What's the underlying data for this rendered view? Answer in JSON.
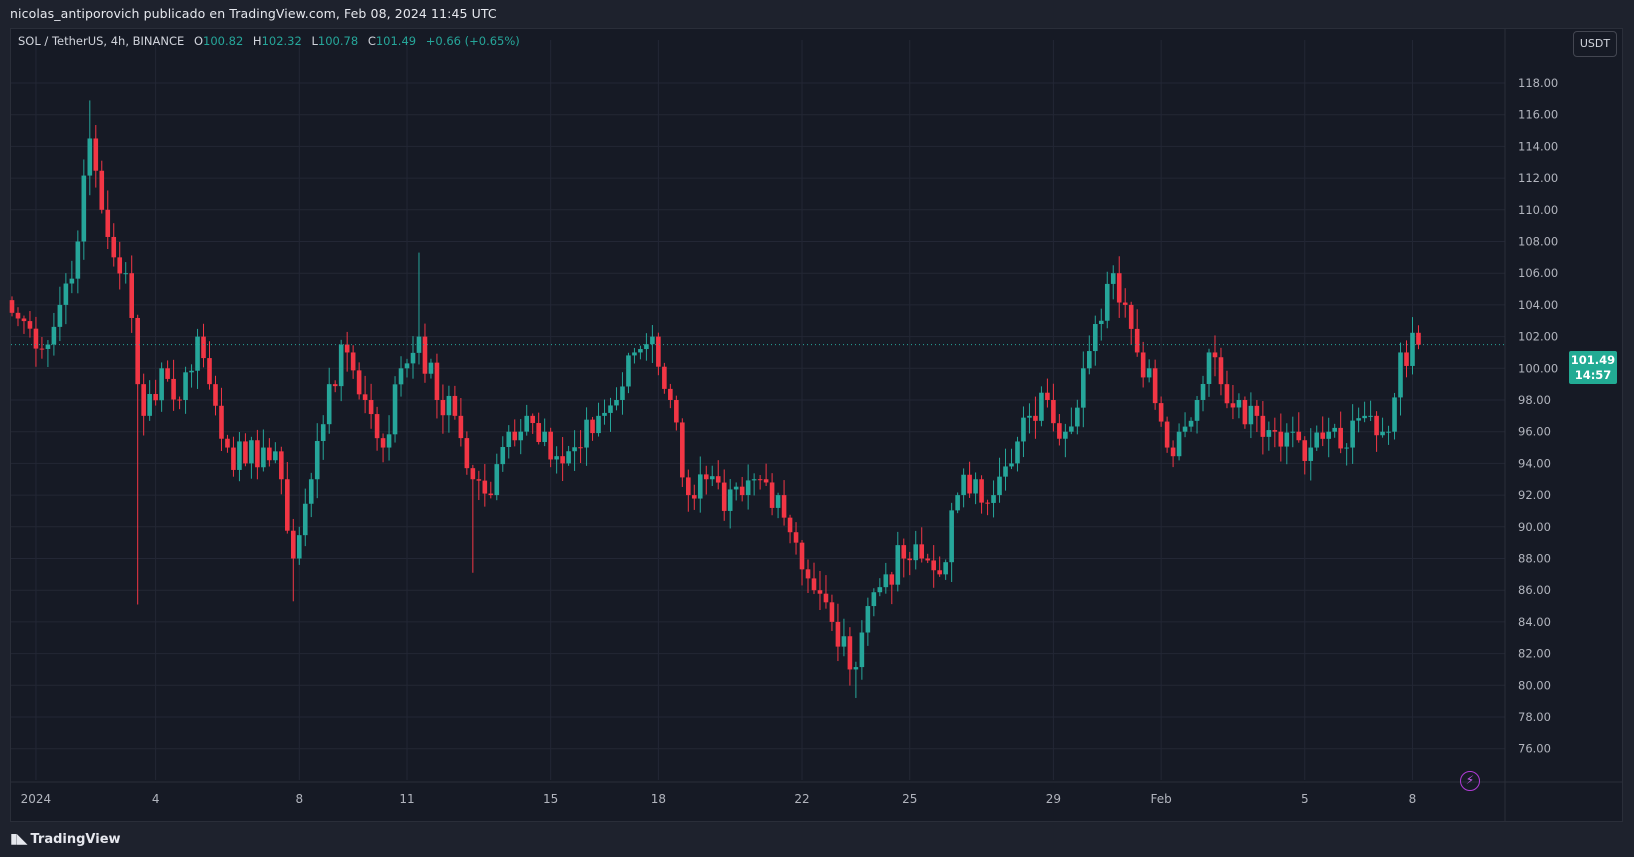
{
  "header": {
    "attribution": "nicolas_antiporovich publicado en TradingView.com, Feb 08, 2024 11:45 UTC"
  },
  "legend": {
    "symbol": "SOL / TetherUS, 4h, BINANCE",
    "open_label": "O",
    "open": "100.82",
    "high_label": "H",
    "high": "102.32",
    "low_label": "L",
    "low": "100.78",
    "close_label": "C",
    "close": "101.49",
    "change": "+0.66 (+0.65%)"
  },
  "price_scale": {
    "currency": "USDT",
    "last_price": "101.49",
    "countdown": "14:57"
  },
  "footer": {
    "brand": "TradingView"
  },
  "colors": {
    "up": "#26a69a",
    "down": "#f23645",
    "background": "#161a25",
    "grid": "#232735",
    "alert": "#b03bd6"
  },
  "chart_data": {
    "type": "candlestick",
    "symbol": "SOL/USDT",
    "interval": "4h",
    "exchange": "BINANCE",
    "ylim": [
      75,
      120
    ],
    "y_ticks": [
      76,
      78,
      80,
      82,
      84,
      86,
      88,
      90,
      92,
      94,
      96,
      98,
      100,
      102,
      104,
      106,
      108,
      110,
      112,
      114,
      116,
      118
    ],
    "x_ticks": [
      {
        "label": "2024",
        "index": 4
      },
      {
        "label": "4",
        "index": 24
      },
      {
        "label": "8",
        "index": 48
      },
      {
        "label": "11",
        "index": 66
      },
      {
        "label": "15",
        "index": 90
      },
      {
        "label": "18",
        "index": 108
      },
      {
        "label": "22",
        "index": 132
      },
      {
        "label": "25",
        "index": 150
      },
      {
        "label": "29",
        "index": 174
      },
      {
        "label": "Feb",
        "index": 192
      },
      {
        "label": "5",
        "index": 216
      },
      {
        "label": "8",
        "index": 234
      }
    ],
    "last_price": 101.49,
    "grid": true,
    "close_anchors": [
      [
        0,
        103.5
      ],
      [
        3,
        102.5
      ],
      [
        6,
        101.5
      ],
      [
        8,
        104
      ],
      [
        11,
        108
      ],
      [
        13,
        114.5
      ],
      [
        15,
        110
      ],
      [
        17,
        107
      ],
      [
        19,
        106
      ],
      [
        21,
        99
      ],
      [
        22,
        97
      ],
      [
        25,
        100
      ],
      [
        28,
        98
      ],
      [
        31,
        102
      ],
      [
        33,
        99
      ],
      [
        36,
        95
      ],
      [
        39,
        94
      ],
      [
        42,
        95
      ],
      [
        45,
        93
      ],
      [
        47,
        88
      ],
      [
        50,
        93
      ],
      [
        53,
        99
      ],
      [
        56,
        101
      ],
      [
        59,
        98
      ],
      [
        62,
        95
      ],
      [
        65,
        100
      ],
      [
        68,
        102
      ],
      [
        71,
        98
      ],
      [
        74,
        97
      ],
      [
        77,
        93
      ],
      [
        80,
        92
      ],
      [
        83,
        96
      ],
      [
        86,
        97
      ],
      [
        89,
        96
      ],
      [
        92,
        94
      ],
      [
        95,
        95
      ],
      [
        98,
        97
      ],
      [
        101,
        98
      ],
      [
        104,
        101
      ],
      [
        107,
        102
      ],
      [
        110,
        98
      ],
      [
        113,
        92
      ],
      [
        116,
        93
      ],
      [
        119,
        91
      ],
      [
        122,
        92
      ],
      [
        125,
        93
      ],
      [
        128,
        92
      ],
      [
        131,
        89
      ],
      [
        134,
        86
      ],
      [
        137,
        84
      ],
      [
        140,
        81
      ],
      [
        143,
        85
      ],
      [
        146,
        87
      ],
      [
        149,
        88
      ],
      [
        152,
        88
      ],
      [
        155,
        87
      ],
      [
        158,
        92
      ],
      [
        161,
        93
      ],
      [
        164,
        92
      ],
      [
        167,
        94
      ],
      [
        170,
        97
      ],
      [
        173,
        98
      ],
      [
        176,
        96
      ],
      [
        179,
        100
      ],
      [
        182,
        103
      ],
      [
        184,
        106
      ],
      [
        186,
        104
      ],
      [
        188,
        101
      ],
      [
        190,
        100
      ],
      [
        193,
        95
      ],
      [
        195,
        96
      ],
      [
        198,
        98
      ],
      [
        200,
        101
      ],
      [
        202,
        99
      ],
      [
        205,
        98
      ],
      [
        208,
        97
      ],
      [
        211,
        96
      ],
      [
        214,
        96
      ],
      [
        217,
        95
      ],
      [
        220,
        96
      ],
      [
        223,
        95
      ],
      [
        226,
        97
      ],
      [
        229,
        96
      ],
      [
        230,
        96
      ],
      [
        232,
        101
      ],
      [
        235,
        101.49
      ]
    ],
    "wicks_notable": [
      {
        "index": 13,
        "high": 116.9
      },
      {
        "index": 21,
        "low": 85.1
      },
      {
        "index": 47,
        "low": 85.3
      },
      {
        "index": 68,
        "high": 107.3
      },
      {
        "index": 77,
        "low": 87.1
      },
      {
        "index": 141,
        "low": 79.2
      },
      {
        "index": 184,
        "high": 106.5
      }
    ]
  }
}
